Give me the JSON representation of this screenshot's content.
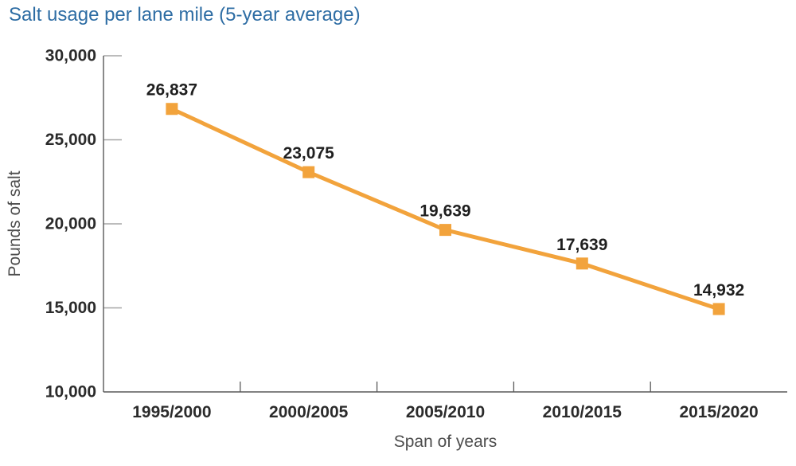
{
  "chart_data": {
    "type": "line",
    "title": "Salt usage per lane mile (5-year average)",
    "xlabel": "Span of years",
    "ylabel": "Pounds of salt",
    "categories": [
      "1995/2000",
      "2000/2005",
      "2005/2010",
      "2010/2015",
      "2015/2020"
    ],
    "series": [
      {
        "name": "Salt usage per lane mile",
        "values": [
          26837,
          23075,
          19639,
          17639,
          14932
        ],
        "labels": [
          "26,837",
          "23,075",
          "19,639",
          "17,639",
          "14,932"
        ]
      }
    ],
    "ylim": [
      10000,
      30000
    ],
    "yticks": {
      "values": [
        30000,
        25000,
        20000,
        15000,
        10000
      ],
      "labels": [
        "30,000",
        "25,000",
        "20,000",
        "15,000",
        "10,000"
      ]
    },
    "grid": false,
    "legend": "none",
    "marker": "square",
    "layout_hints": {
      "axes_shown": [
        "left",
        "bottom"
      ],
      "y_ticks_direction": "inward",
      "x_ticks_position": "category-boundaries"
    },
    "colors": {
      "line": "#F2A33C",
      "marker": "#F2A33C",
      "title": "#2E6DA4",
      "data_label": "#1F1F1F",
      "tick_label": "#2B2B2B",
      "axis_line": "#595959",
      "y_tick": "#A6A6A6",
      "axis_title": "#4D4D4D"
    }
  }
}
